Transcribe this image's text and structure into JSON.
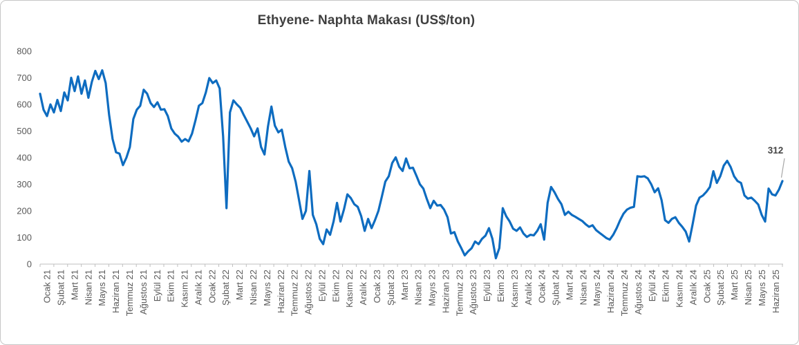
{
  "title": "Ethyene- Naphta Makası (US$/ton)",
  "chart_data": {
    "type": "line",
    "title": "Ethyene- Naphta Makası (US$/ton)",
    "unit": "US$/ton",
    "ylabel": "",
    "xlabel": "",
    "ylim": [
      0,
      800
    ],
    "y_ticks": [
      800,
      700,
      600,
      500,
      400,
      300,
      200,
      100,
      0
    ],
    "grid": false,
    "legend": false,
    "line_color": "#0e6cc0",
    "axis_color": "#bfbfbf",
    "tick_label_color": "#595959",
    "leader_line_color": "#a6a6a6",
    "points_per_month": 4,
    "x_labels": [
      "Ocak 21",
      "Şubat 21",
      "Mart 21",
      "Nisan 21",
      "Mayıs 21",
      "Haziran 21",
      "Temmuz 21",
      "Ağustos 21",
      "Eylül 21",
      "Ekim 21",
      "Kasım 21",
      "Aralık 21",
      "Ocak 22",
      "Şubat 22",
      "Mart 22",
      "Nisan 22",
      "Mayıs 22",
      "Haziran 22",
      "Temmuz 22",
      "Ağustos 22",
      "Eylül 22",
      "Ekim 22",
      "Kasım 22",
      "Aralık 22",
      "Ocak 23",
      "Şubat 23",
      "Mart 23",
      "Nisan 23",
      "Mayıs 23",
      "Haziran 23",
      "Temmuz 23",
      "Ağustos 23",
      "Eylül 23",
      "Ekim 23",
      "Kasım 23",
      "Aralık 23",
      "Ocak 24",
      "Şubat 24",
      "Mart 24",
      "Nisan 24",
      "Mayıs 24",
      "Haziran 24",
      "Temmuz 24",
      "Ağustos 24",
      "Eylül 24",
      "Ekim 24",
      "Kasım 24",
      "Aralık 24",
      "Ocak 25",
      "Şubat 25",
      "Mart 25",
      "Nisan 25",
      "Mayıs 25",
      "Haziran 25"
    ],
    "values": [
      640,
      580,
      556,
      600,
      570,
      617,
      575,
      645,
      615,
      700,
      650,
      705,
      640,
      690,
      625,
      685,
      726,
      695,
      728,
      680,
      560,
      470,
      420,
      415,
      372,
      400,
      440,
      545,
      580,
      595,
      655,
      640,
      605,
      590,
      608,
      580,
      582,
      556,
      510,
      490,
      479,
      460,
      470,
      461,
      490,
      540,
      595,
      605,
      645,
      699,
      680,
      690,
      660,
      480,
      210,
      570,
      615,
      600,
      587,
      560,
      535,
      510,
      480,
      510,
      440,
      412,
      517,
      592,
      520,
      495,
      505,
      440,
      385,
      360,
      310,
      240,
      170,
      200,
      350,
      185,
      150,
      95,
      75,
      130,
      110,
      160,
      230,
      160,
      205,
      262,
      248,
      225,
      215,
      180,
      125,
      170,
      135,
      165,
      200,
      254,
      310,
      330,
      380,
      401,
      366,
      350,
      397,
      360,
      362,
      332,
      300,
      284,
      245,
      210,
      238,
      220,
      222,
      205,
      176,
      115,
      120,
      85,
      60,
      33,
      48,
      60,
      85,
      75,
      95,
      107,
      135,
      95,
      22,
      60,
      210,
      180,
      160,
      133,
      125,
      138,
      115,
      102,
      110,
      108,
      125,
      150,
      92,
      230,
      290,
      270,
      245,
      225,
      185,
      197,
      185,
      178,
      170,
      162,
      150,
      140,
      146,
      128,
      118,
      108,
      98,
      92,
      110,
      135,
      165,
      190,
      205,
      212,
      215,
      330,
      328,
      330,
      322,
      300,
      270,
      285,
      240,
      165,
      155,
      170,
      176,
      155,
      140,
      122,
      85,
      150,
      220,
      250,
      258,
      272,
      290,
      349,
      305,
      330,
      370,
      388,
      365,
      330,
      312,
      305,
      258,
      246,
      250,
      238,
      224,
      185,
      160,
      284,
      262,
      258,
      280,
      312
    ],
    "last_point_label": "312"
  }
}
